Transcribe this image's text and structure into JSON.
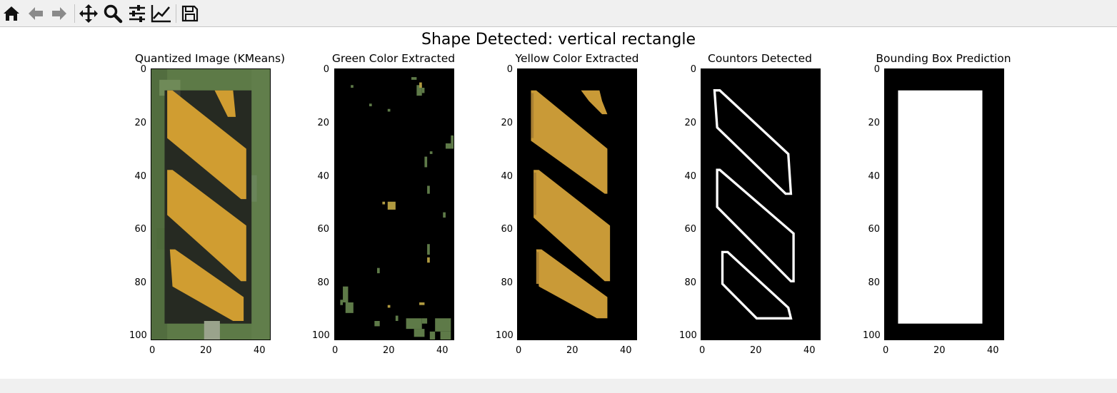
{
  "toolbar": {
    "buttons": [
      {
        "icon": "home-icon",
        "name": "home-button"
      },
      {
        "icon": "back-arrow-icon",
        "name": "back-button"
      },
      {
        "icon": "forward-arrow-icon",
        "name": "forward-button"
      },
      {
        "icon": "pan-move-icon",
        "name": "pan-button"
      },
      {
        "icon": "zoom-magnifier-icon",
        "name": "zoom-button"
      },
      {
        "icon": "subplots-sliders-icon",
        "name": "configure-subplots-button"
      },
      {
        "icon": "edit-axis-line-icon",
        "name": "edit-axis-button"
      },
      {
        "icon": "save-floppy-icon",
        "name": "save-button"
      }
    ]
  },
  "figure": {
    "suptitle": "Shape Detected: vertical rectangle"
  },
  "chart_data": [
    {
      "type": "image",
      "title": "Quantized Image (KMeans)",
      "xticks": [
        "0",
        "20",
        "40"
      ],
      "yticks": [
        "0",
        "20",
        "40",
        "60",
        "80",
        "100"
      ],
      "xlim": [
        0,
        45
      ],
      "ylim": [
        102,
        0
      ],
      "content": "quantized yellow-black diagonal striped sign on green background"
    },
    {
      "type": "image",
      "title": "Green Color Extracted",
      "xticks": [
        "0",
        "20",
        "40"
      ],
      "yticks": [
        "0",
        "20",
        "40",
        "60",
        "80",
        "100"
      ],
      "xlim": [
        0,
        45
      ],
      "ylim": [
        102,
        0
      ],
      "content": "sparse green pixels on black"
    },
    {
      "type": "image",
      "title": "Yellow Color Extracted",
      "xticks": [
        "0",
        "20",
        "40"
      ],
      "yticks": [
        "0",
        "20",
        "40",
        "60",
        "80",
        "100"
      ],
      "xlim": [
        0,
        45
      ],
      "ylim": [
        102,
        0
      ],
      "content": "yellow diagonal stripes on black"
    },
    {
      "type": "image",
      "title": "Countors Detected",
      "xticks": [
        "0",
        "20",
        "40"
      ],
      "yticks": [
        "0",
        "20",
        "40",
        "60",
        "80",
        "100"
      ],
      "xlim": [
        0,
        45
      ],
      "ylim": [
        102,
        0
      ],
      "content": "white contour outlines of stripes on black"
    },
    {
      "type": "image",
      "title": "Bounding Box Prediction",
      "xticks": [
        "0",
        "20",
        "40"
      ],
      "yticks": [
        "0",
        "20",
        "40",
        "60",
        "80",
        "100"
      ],
      "xlim": [
        0,
        45
      ],
      "ylim": [
        102,
        0
      ],
      "content": "white filled rectangle on black",
      "bbox_data": {
        "x0": 5,
        "y0": 8,
        "x1": 37,
        "y1": 96
      }
    }
  ],
  "colors": {
    "stripe_yellow": "#c9982e",
    "stripe_dark": "#24281f",
    "grass_green": "#5e7a48",
    "contour_white": "#ffffff",
    "background_black": "#000000"
  }
}
